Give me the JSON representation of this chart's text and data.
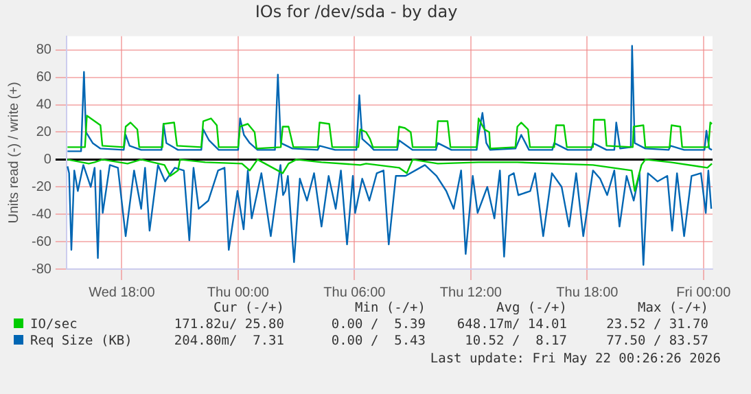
{
  "chart_data": {
    "type": "line",
    "title": "IOs for /dev/sda - by day",
    "ylabel": "Units read (-) / write (+)",
    "xlim": [
      "2026-05-20T15:09",
      "2026-05-22T00:28"
    ],
    "xticks": [
      {
        "value": "2026-05-20T18:00",
        "label": "Wed 18:00"
      },
      {
        "value": "2026-05-21T00:00",
        "label": "Thu 00:00"
      },
      {
        "value": "2026-05-21T06:00",
        "label": "Thu 06:00"
      },
      {
        "value": "2026-05-21T12:00",
        "label": "Thu 12:00"
      },
      {
        "value": "2026-05-21T18:00",
        "label": "Thu 18:00"
      },
      {
        "value": "2026-05-22T00:00",
        "label": "Fri 00:00"
      }
    ],
    "ylim": [
      -80,
      90
    ],
    "yticks": [
      -80,
      -60,
      -40,
      -20,
      0,
      20,
      40,
      60,
      80
    ],
    "grid": true,
    "legend": "bottom",
    "marker": "none",
    "line_style": "solid",
    "series": [
      {
        "name": "IO/sec",
        "color": "#00cc00",
        "x": [
          "2026-05-20T15:12",
          "2026-05-20T16:06",
          "2026-05-20T16:12",
          "2026-05-20T16:36",
          "2026-05-20T16:54",
          "2026-05-20T17:00",
          "2026-05-20T18:06",
          "2026-05-20T18:12",
          "2026-05-20T18:27",
          "2026-05-20T18:48",
          "2026-05-20T18:54",
          "2026-05-20T20:06",
          "2026-05-20T20:09",
          "2026-05-20T20:42",
          "2026-05-20T20:51",
          "2026-05-20T22:06",
          "2026-05-20T22:12",
          "2026-05-20T22:36",
          "2026-05-20T22:54",
          "2026-05-20T23:00",
          "2026-05-21T00:00",
          "2026-05-21T00:06",
          "2026-05-21T00:30",
          "2026-05-21T00:51",
          "2026-05-21T00:57",
          "2026-05-21T02:12",
          "2026-05-21T02:18",
          "2026-05-21T02:36",
          "2026-05-21T02:51",
          "2026-05-21T04:06",
          "2026-05-21T04:12",
          "2026-05-21T04:42",
          "2026-05-21T04:51",
          "2026-05-21T06:12",
          "2026-05-21T06:18",
          "2026-05-21T06:36",
          "2026-05-21T06:48",
          "2026-05-21T06:57",
          "2026-05-21T08:12",
          "2026-05-21T08:18",
          "2026-05-21T08:36",
          "2026-05-21T08:54",
          "2026-05-21T09:00",
          "2026-05-21T10:12",
          "2026-05-21T10:18",
          "2026-05-21T10:48",
          "2026-05-21T10:57",
          "2026-05-21T12:18",
          "2026-05-21T12:24",
          "2026-05-21T12:42",
          "2026-05-21T12:57",
          "2026-05-21T13:00",
          "2026-05-21T14:18",
          "2026-05-21T14:24",
          "2026-05-21T14:36",
          "2026-05-21T14:57",
          "2026-05-21T15:03",
          "2026-05-21T16:18",
          "2026-05-21T16:24",
          "2026-05-21T16:48",
          "2026-05-21T16:57",
          "2026-05-21T18:18",
          "2026-05-21T18:21",
          "2026-05-21T18:54",
          "2026-05-21T19:00",
          "2026-05-21T20:21",
          "2026-05-21T20:24",
          "2026-05-21T20:54",
          "2026-05-21T21:00",
          "2026-05-21T22:15",
          "2026-05-21T22:21",
          "2026-05-21T22:48",
          "2026-05-21T22:54",
          "2026-05-22T00:15",
          "2026-05-22T00:21",
          "2026-05-22T00:26"
        ],
        "values": [
          9,
          9,
          32,
          28,
          25,
          10,
          9,
          24,
          27,
          22,
          9,
          9,
          26,
          27,
          10,
          9,
          28,
          30,
          25,
          9,
          9,
          24,
          26,
          20,
          8,
          9,
          24,
          24,
          9,
          9,
          27,
          26,
          9,
          9,
          22,
          20,
          15,
          9,
          9,
          24,
          23,
          20,
          9,
          9,
          28,
          28,
          9,
          9,
          30,
          22,
          20,
          8,
          9,
          24,
          27,
          22,
          9,
          9,
          25,
          25,
          9,
          9,
          29,
          29,
          10,
          9,
          24,
          25,
          9,
          9,
          25,
          24,
          9,
          9,
          27,
          26
        ]
      },
      {
        "color": "#00cc00",
        "x": [
          "2026-05-20T15:12",
          "2026-05-20T16:18",
          "2026-05-20T16:36",
          "2026-05-20T17:00",
          "2026-05-20T18:18",
          "2026-05-20T19:00",
          "2026-05-20T20:12",
          "2026-05-20T20:30",
          "2026-05-20T20:54",
          "2026-05-20T21:00",
          "2026-05-20T22:18",
          "2026-05-21T00:12",
          "2026-05-21T00:36",
          "2026-05-21T01:00",
          "2026-05-21T02:18",
          "2026-05-21T02:36",
          "2026-05-21T03:00",
          "2026-05-21T04:18",
          "2026-05-21T06:18",
          "2026-05-21T06:36",
          "2026-05-21T08:18",
          "2026-05-21T08:42",
          "2026-05-21T09:00",
          "2026-05-21T10:18",
          "2026-05-21T12:24",
          "2026-05-21T14:24",
          "2026-05-21T16:18",
          "2026-05-21T18:18",
          "2026-05-21T20:18",
          "2026-05-21T20:27",
          "2026-05-21T20:36",
          "2026-05-21T20:48",
          "2026-05-21T21:00",
          "2026-05-21T22:18",
          "2026-05-22T00:12",
          "2026-05-22T00:26"
        ],
        "values": [
          0,
          -3,
          -2,
          0,
          -3,
          0,
          -4,
          -12,
          -8,
          0,
          -2,
          -3,
          -8,
          0,
          -10,
          -3,
          0,
          -2,
          -4,
          -3,
          -6,
          -10,
          0,
          -3,
          -2,
          -2,
          -3,
          -4,
          -8,
          -23,
          -15,
          -4,
          0,
          -2,
          -6,
          -3
        ]
      },
      {
        "name": "Req Size (KB)",
        "color": "#0066b3",
        "x": [
          "2026-05-20T15:12",
          "2026-05-20T15:54",
          "2026-05-20T16:03",
          "2026-05-20T16:09",
          "2026-05-20T16:30",
          "2026-05-20T16:54",
          "2026-05-20T18:06",
          "2026-05-20T18:12",
          "2026-05-20T18:24",
          "2026-05-20T19:00",
          "2026-05-20T20:03",
          "2026-05-20T20:09",
          "2026-05-20T20:18",
          "2026-05-20T20:54",
          "2026-05-20T22:06",
          "2026-05-20T22:12",
          "2026-05-20T22:30",
          "2026-05-20T23:00",
          "2026-05-21T00:00",
          "2026-05-21T00:06",
          "2026-05-21T00:18",
          "2026-05-21T00:36",
          "2026-05-21T01:00",
          "2026-05-21T01:54",
          "2026-05-21T02:03",
          "2026-05-21T02:12",
          "2026-05-21T02:48",
          "2026-05-21T04:06",
          "2026-05-21T04:12",
          "2026-05-21T05:00",
          "2026-05-21T06:06",
          "2026-05-21T06:15",
          "2026-05-21T06:24",
          "2026-05-21T06:48",
          "2026-05-21T07:00",
          "2026-05-21T08:12",
          "2026-05-21T08:18",
          "2026-05-21T09:00",
          "2026-05-21T10:12",
          "2026-05-21T10:18",
          "2026-05-21T11:00",
          "2026-05-21T12:18",
          "2026-05-21T12:24",
          "2026-05-21T12:36",
          "2026-05-21T12:48",
          "2026-05-21T13:00",
          "2026-05-21T14:18",
          "2026-05-21T14:36",
          "2026-05-21T15:00",
          "2026-05-21T16:12",
          "2026-05-21T16:18",
          "2026-05-21T17:00",
          "2026-05-21T18:12",
          "2026-05-21T18:18",
          "2026-05-21T19:00",
          "2026-05-21T19:24",
          "2026-05-21T19:30",
          "2026-05-21T19:42",
          "2026-05-21T20:15",
          "2026-05-21T20:19",
          "2026-05-21T20:27",
          "2026-05-21T21:00",
          "2026-05-21T22:12",
          "2026-05-21T22:18",
          "2026-05-21T23:00",
          "2026-05-22T00:03",
          "2026-05-22T00:09",
          "2026-05-22T00:18",
          "2026-05-22T00:26"
        ],
        "values": [
          6,
          6,
          64,
          20,
          12,
          8,
          7,
          18,
          10,
          7,
          7,
          26,
          12,
          7,
          7,
          22,
          14,
          7,
          7,
          30,
          18,
          12,
          7,
          7,
          62,
          12,
          8,
          7,
          10,
          7,
          7,
          47,
          15,
          10,
          7,
          7,
          14,
          7,
          7,
          12,
          7,
          7,
          18,
          34,
          12,
          7,
          8,
          18,
          7,
          7,
          12,
          7,
          7,
          12,
          7,
          7,
          27,
          8,
          9,
          83,
          12,
          8,
          7,
          10,
          7,
          7,
          21,
          8,
          7
        ]
      },
      {
        "color": "#0066b3",
        "x": [
          "2026-05-20T15:12",
          "2026-05-20T15:17",
          "2026-05-20T15:24",
          "2026-05-20T15:33",
          "2026-05-20T15:44",
          "2026-05-20T16:01",
          "2026-05-20T16:24",
          "2026-05-20T16:36",
          "2026-05-20T16:46",
          "2026-05-20T16:54",
          "2026-05-20T17:01",
          "2026-05-20T17:23",
          "2026-05-20T17:48",
          "2026-05-20T18:12",
          "2026-05-20T18:38",
          "2026-05-20T19:00",
          "2026-05-20T19:12",
          "2026-05-20T19:26",
          "2026-05-20T19:52",
          "2026-05-20T20:14",
          "2026-05-20T20:44",
          "2026-05-20T21:12",
          "2026-05-20T21:29",
          "2026-05-20T21:42",
          "2026-05-20T21:58",
          "2026-05-20T22:28",
          "2026-05-20T22:58",
          "2026-05-20T23:18",
          "2026-05-20T23:31",
          "2026-05-20T23:58",
          "2026-05-21T00:17",
          "2026-05-21T00:30",
          "2026-05-21T00:42",
          "2026-05-21T01:12",
          "2026-05-21T01:41",
          "2026-05-21T02:11",
          "2026-05-21T02:19",
          "2026-05-21T02:26",
          "2026-05-21T02:34",
          "2026-05-21T02:53",
          "2026-05-21T03:11",
          "2026-05-21T03:33",
          "2026-05-21T03:55",
          "2026-05-21T04:18",
          "2026-05-21T04:40",
          "2026-05-21T05:02",
          "2026-05-21T05:18",
          "2026-05-21T05:37",
          "2026-05-21T05:55",
          "2026-05-21T06:02",
          "2026-05-21T06:24",
          "2026-05-21T06:46",
          "2026-05-21T07:09",
          "2026-05-21T07:30",
          "2026-05-21T07:46",
          "2026-05-21T08:08",
          "2026-05-21T08:38",
          "2026-05-21T09:38",
          "2026-05-21T10:14",
          "2026-05-21T10:44",
          "2026-05-21T11:07",
          "2026-05-21T11:30",
          "2026-05-21T11:44",
          "2026-05-21T12:06",
          "2026-05-21T12:21",
          "2026-05-21T12:51",
          "2026-05-21T13:13",
          "2026-05-21T13:30",
          "2026-05-21T13:43",
          "2026-05-21T13:58",
          "2026-05-21T14:13",
          "2026-05-21T14:27",
          "2026-05-21T15:04",
          "2026-05-21T15:19",
          "2026-05-21T15:44",
          "2026-05-21T16:11",
          "2026-05-21T16:41",
          "2026-05-21T17:04",
          "2026-05-21T17:26",
          "2026-05-21T17:48",
          "2026-05-21T18:18",
          "2026-05-21T18:40",
          "2026-05-21T19:02",
          "2026-05-21T19:24",
          "2026-05-21T19:40",
          "2026-05-21T20:02",
          "2026-05-21T20:24",
          "2026-05-21T20:42",
          "2026-05-21T20:54",
          "2026-05-21T21:08",
          "2026-05-21T21:38",
          "2026-05-21T22:08",
          "2026-05-21T22:23",
          "2026-05-21T22:38",
          "2026-05-21T23:00",
          "2026-05-21T23:23",
          "2026-05-21T23:52",
          "2026-05-22T00:07",
          "2026-05-22T00:15",
          "2026-05-22T00:24"
        ],
        "values": [
          -5,
          -10,
          -66,
          -8,
          -23,
          -4,
          -20,
          -6,
          -72,
          -8,
          -39,
          -4,
          -6,
          -56,
          -8,
          -36,
          -6,
          -52,
          -4,
          -16,
          -6,
          -8,
          -59,
          -6,
          -36,
          -30,
          -8,
          -6,
          -66,
          -23,
          -51,
          -8,
          -43,
          -10,
          -56,
          -4,
          -26,
          -23,
          -12,
          -75,
          -14,
          -30,
          -10,
          -49,
          -12,
          -36,
          -8,
          -62,
          -12,
          -39,
          -14,
          -30,
          -10,
          -8,
          -62,
          -12,
          -12,
          -4,
          -12,
          -23,
          -36,
          -8,
          -69,
          -12,
          -39,
          -20,
          -43,
          -8,
          -71,
          -12,
          -10,
          -26,
          -23,
          -10,
          -56,
          -10,
          -20,
          -49,
          -10,
          -56,
          -8,
          -14,
          -26,
          -8,
          -49,
          -12,
          -30,
          -10,
          -77,
          -10,
          -16,
          -12,
          -52,
          -10,
          -56,
          -12,
          -10,
          -39,
          -8,
          -36
        ]
      }
    ],
    "annotations": [
      "Cur (-/+)",
      "Min (-/+)",
      "Avg (-/+)",
      "Max (-/+)",
      "171.82u/ 25.80",
      "0.00 /  5.39",
      "648.17m/ 14.01",
      "23.52 / 31.70",
      "204.80m/  7.31",
      "0.00 /  5.43",
      "10.52 /  8.17",
      "77.50 / 83.57",
      "Last update: Fri May 22 00:26:26 2026"
    ]
  }
}
